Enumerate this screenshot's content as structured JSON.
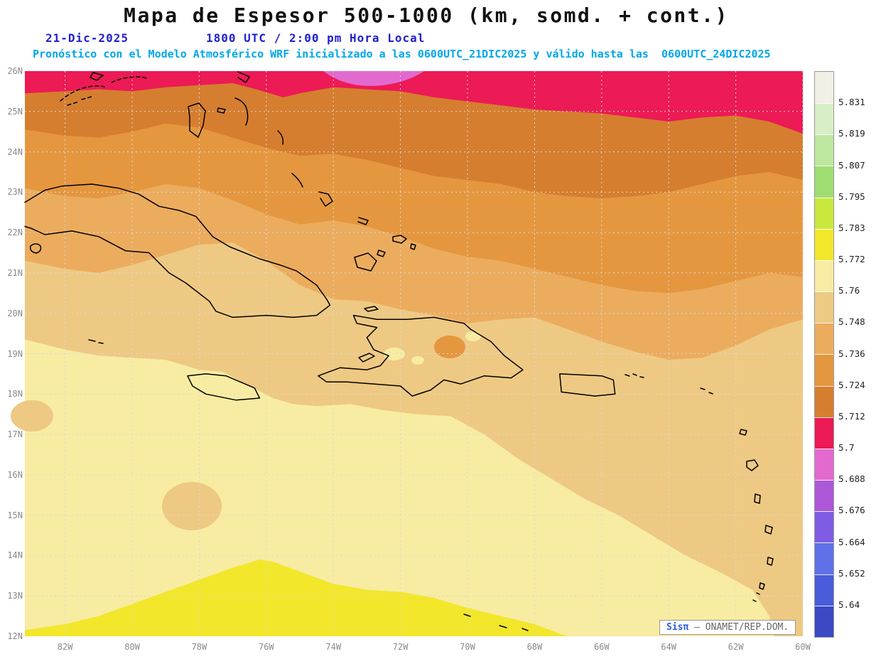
{
  "theme": {
    "title_color": "#111111",
    "date_color": "#2121CD",
    "forecast_color": "#00A7E8",
    "axis_label_color": "#8A8A8A",
    "gridline_color": "#D9D9D9",
    "coastline_color": "#000000"
  },
  "header": {
    "title": "Mapa de Espesor 500-1000 (km, somd. + cont.)",
    "date": "21-Dic-2025",
    "time_line": "1800 UTC / 2:00 pm Hora Local",
    "forecast_line": "Pronóstico con el Modelo Atmosférico WRF inicializado a las 0600UTC_21DIC2025 y válido hasta las  0600UTC_24DIC2025"
  },
  "map": {
    "lat_labels": [
      "26N",
      "25N",
      "24N",
      "23N",
      "22N",
      "21N",
      "20N",
      "19N",
      "18N",
      "17N",
      "16N",
      "15N",
      "14N",
      "13N",
      "12N"
    ],
    "lon_labels": [
      "82W",
      "80W",
      "78W",
      "76W",
      "74W",
      "72W",
      "70W",
      "68W",
      "66W",
      "64W",
      "62W",
      "60W"
    ]
  },
  "colorbar": {
    "labels": [
      "5.831",
      "5.819",
      "5.807",
      "5.795",
      "5.783",
      "5.772",
      "5.76",
      "5.748",
      "5.736",
      "5.724",
      "5.712",
      "5.7",
      "5.688",
      "5.676",
      "5.664",
      "5.652",
      "5.64"
    ],
    "colors": [
      "#F0F0E6",
      "#D8EFC6",
      "#BDE79F",
      "#9FDD72",
      "#C9E83E",
      "#F2E72B",
      "#F7ECA2",
      "#EEC983",
      "#ECAC5E",
      "#E5973F",
      "#D67E2F",
      "#EC1A55",
      "#E26ACF",
      "#AC58D8",
      "#7E5CE4",
      "#6070E8",
      "#4A5CDA",
      "#3A49C4"
    ]
  },
  "fills": {
    "yellow": "#F2E72B",
    "pale_yellow": "#F7ECA2",
    "tan": "#EEC983",
    "light_orange": "#ECAC5E",
    "med_orange": "#E5973F",
    "dark_orange": "#D67E2F",
    "crimson": "#EC1A55",
    "magenta": "#E26ACF"
  },
  "credit": {
    "brand": "Sisπ",
    "org": "– ONAMET/REP.DOM."
  }
}
